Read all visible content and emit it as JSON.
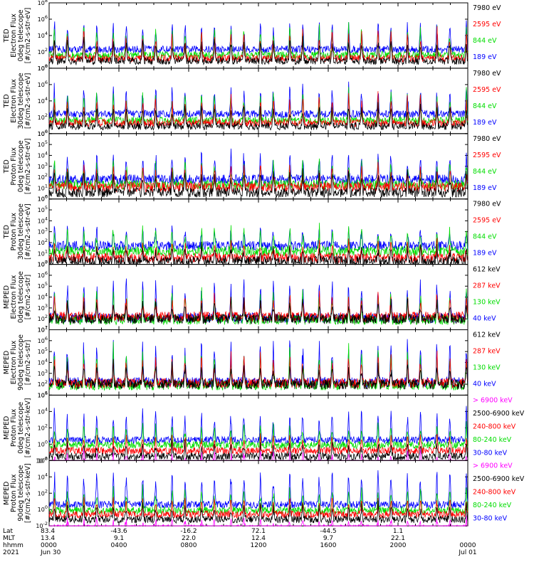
{
  "chart_data": [
    {
      "type": "line",
      "ylabel_lines": [
        "TED",
        "Electron Flux",
        "0deg telescope",
        "[#/cm2-s-str-eV]"
      ],
      "yscale": "log",
      "y_ticks": [
        "10^0",
        "10^2",
        "10^4",
        "10^6",
        "10^8"
      ],
      "series": [
        {
          "name": "7980 eV",
          "color": "#000000",
          "base_exp": 0.9,
          "peak_exp": 3.6
        },
        {
          "name": "2595 eV",
          "color": "#ff0000",
          "base_exp": 1.2,
          "peak_exp": 4.6
        },
        {
          "name": "844 eV",
          "color": "#00dd00",
          "base_exp": 1.6,
          "peak_exp": 5.0
        },
        {
          "name": "189 eV",
          "color": "#0000ff",
          "base_exp": 2.3,
          "peak_exp": 5.6
        }
      ]
    },
    {
      "type": "line",
      "ylabel_lines": [
        "TED",
        "Electron Flux",
        "30deg telescope",
        "[#/cm2-s-str-eV]"
      ],
      "yscale": "log",
      "y_ticks": [
        "10^0",
        "10^2",
        "10^4",
        "10^6",
        "10^8"
      ],
      "series": [
        {
          "name": "7980 eV",
          "color": "#000000",
          "base_exp": 0.9,
          "peak_exp": 3.4
        },
        {
          "name": "2595 eV",
          "color": "#ff0000",
          "base_exp": 1.3,
          "peak_exp": 4.5
        },
        {
          "name": "844 eV",
          "color": "#00dd00",
          "base_exp": 1.6,
          "peak_exp": 5.1
        },
        {
          "name": "189 eV",
          "color": "#0000ff",
          "base_exp": 2.4,
          "peak_exp": 5.8
        }
      ]
    },
    {
      "type": "line",
      "ylabel_lines": [
        "TED",
        "Proton Flux",
        "0deg telescope",
        "[#/cm2-s-str-eV]"
      ],
      "yscale": "log",
      "y_ticks": [
        "10^0",
        "10^1",
        "10^2",
        "10^3",
        "10^4",
        "10^5",
        "10^6"
      ],
      "series": [
        {
          "name": "7980 eV",
          "color": "#000000",
          "base_exp": 0.6,
          "peak_exp": 2.6
        },
        {
          "name": "2595 eV",
          "color": "#ff0000",
          "base_exp": 1.1,
          "peak_exp": 3.0
        },
        {
          "name": "844 eV",
          "color": "#00dd00",
          "base_exp": 1.3,
          "peak_exp": 3.4
        },
        {
          "name": "189 eV",
          "color": "#0000ff",
          "base_exp": 1.8,
          "peak_exp": 4.3
        }
      ]
    },
    {
      "type": "line",
      "ylabel_lines": [
        "TED",
        "Proton Flux",
        "30deg telescope",
        "[#/cm2-s-str-eV]"
      ],
      "yscale": "log",
      "y_ticks": [
        "10^0",
        "10^1",
        "10^2",
        "10^3",
        "10^4",
        "10^5",
        "10^6"
      ],
      "series": [
        {
          "name": "7980 eV",
          "color": "#000000",
          "base_exp": 0.3,
          "peak_exp": 1.6
        },
        {
          "name": "2595 eV",
          "color": "#ff0000",
          "base_exp": 0.6,
          "peak_exp": 2.0
        },
        {
          "name": "844 eV",
          "color": "#00dd00",
          "base_exp": 1.2,
          "peak_exp": 3.5
        },
        {
          "name": "189 eV",
          "color": "#0000ff",
          "base_exp": 1.7,
          "peak_exp": 3.4
        }
      ]
    },
    {
      "type": "line",
      "ylabel_lines": [
        "MEPED",
        "Electron Flux",
        "0deg telescope",
        "[#/cm2-s-str]"
      ],
      "yscale": "log",
      "y_ticks": [
        "10^1",
        "10^2",
        "10^3",
        "10^4",
        "10^5",
        "10^6",
        "10^7"
      ],
      "series": [
        {
          "name": "612 keV",
          "color": "#000000",
          "base_exp": 2.0,
          "peak_exp": 3.6
        },
        {
          "name": "287 keV",
          "color": "#ff0000",
          "base_exp": 2.2,
          "peak_exp": 4.2
        },
        {
          "name": "130 keV",
          "color": "#00dd00",
          "base_exp": 1.9,
          "peak_exp": 4.6
        },
        {
          "name": "40 keV",
          "color": "#0000ff",
          "base_exp": 2.1,
          "peak_exp": 5.6
        }
      ]
    },
    {
      "type": "line",
      "ylabel_lines": [
        "MEPED",
        "Electron Flux",
        "90deg telescope",
        "[#/cm2-s-str]"
      ],
      "yscale": "log",
      "y_ticks": [
        "10^1",
        "10^2",
        "10^3",
        "10^4",
        "10^5",
        "10^6",
        "10^7"
      ],
      "series": [
        {
          "name": "612 keV",
          "color": "#000000",
          "base_exp": 2.0,
          "peak_exp": 3.8
        },
        {
          "name": "287 keV",
          "color": "#ff0000",
          "base_exp": 2.1,
          "peak_exp": 4.6
        },
        {
          "name": "130 keV",
          "color": "#00dd00",
          "base_exp": 1.9,
          "peak_exp": 5.2
        },
        {
          "name": "40 keV",
          "color": "#0000ff",
          "base_exp": 2.2,
          "peak_exp": 6.0
        }
      ]
    },
    {
      "type": "line",
      "ylabel_lines": [
        "MEPED",
        "Proton Flux",
        "0deg telescope",
        "[#/cm2-s-str-keV]"
      ],
      "yscale": "log",
      "y_ticks": [
        "10^-2",
        "10^0",
        "10^2",
        "10^4",
        "10^6"
      ],
      "series": [
        {
          "name": "> 6900 keV",
          "color": "#ff00ff",
          "base_exp": -2.4,
          "peak_exp": -1.0
        },
        {
          "name": "2500-6900 keV",
          "color": "#000000",
          "base_exp": -1.5,
          "peak_exp": 0.2
        },
        {
          "name": "240-800 keV",
          "color": "#ff0000",
          "base_exp": -0.8,
          "peak_exp": 1.0
        },
        {
          "name": "80-240 keV",
          "color": "#00dd00",
          "base_exp": -0.1,
          "peak_exp": 2.4
        },
        {
          "name": "30-80 keV",
          "color": "#0000ff",
          "base_exp": 0.5,
          "peak_exp": 4.2
        }
      ]
    },
    {
      "type": "line",
      "ylabel_lines": [
        "MEPED",
        "Proton Flux",
        "90deg telescope",
        "[#/cm2-s-str-keV]"
      ],
      "yscale": "log",
      "y_ticks": [
        "10^-2",
        "10^0",
        "10^2",
        "10^4",
        "10^6"
      ],
      "series": [
        {
          "name": "> 6900 keV",
          "color": "#ff00ff",
          "base_exp": -2.3,
          "peak_exp": -1.2
        },
        {
          "name": "2500-6900 keV",
          "color": "#000000",
          "base_exp": -1.2,
          "peak_exp": 0.5
        },
        {
          "name": "240-800 keV",
          "color": "#ff0000",
          "base_exp": -0.6,
          "peak_exp": 1.4
        },
        {
          "name": "80-240 keV",
          "color": "#00dd00",
          "base_exp": -0.1,
          "peak_exp": 2.6
        },
        {
          "name": "30-80 keV",
          "color": "#0000ff",
          "base_exp": 0.6,
          "peak_exp": 4.8
        }
      ]
    }
  ],
  "x_axis": {
    "range_hours": [
      0,
      24
    ],
    "row_labels": [
      "Lat",
      "MLT",
      "hhmm",
      "2021"
    ],
    "ticks": [
      {
        "hour": 0,
        "lat": "83.4",
        "mlt": "13.4",
        "hhmm": "0000",
        "date": "Jun 30"
      },
      {
        "hour": 4,
        "lat": "-43.6",
        "mlt": "9.1",
        "hhmm": "0400",
        "date": ""
      },
      {
        "hour": 8,
        "lat": "-16.2",
        "mlt": "22.0",
        "hhmm": "0800",
        "date": ""
      },
      {
        "hour": 12,
        "lat": "72.1",
        "mlt": "12.4",
        "hhmm": "1200",
        "date": ""
      },
      {
        "hour": 16,
        "lat": "-44.5",
        "mlt": "9.7",
        "hhmm": "1600",
        "date": ""
      },
      {
        "hour": 20,
        "lat": "1.1",
        "mlt": "22.1",
        "hhmm": "2000",
        "date": ""
      },
      {
        "hour": 24,
        "lat": "",
        "mlt": "",
        "hhmm": "0000",
        "date": "Jul 01"
      }
    ]
  }
}
